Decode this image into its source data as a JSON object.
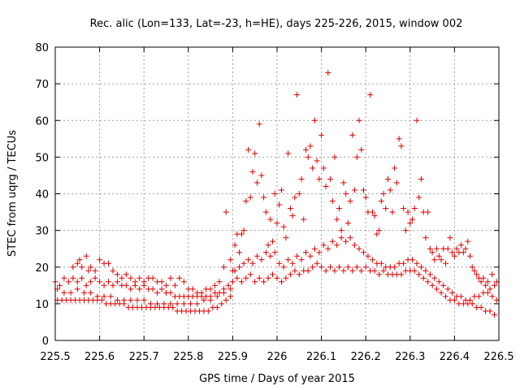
{
  "chart_data": {
    "type": "scatter",
    "title": "Rec. alic (Lon=133, Lat=-23, h=HE), days 225-226, 2015, window 002",
    "xlabel": "GPS time / Days of year 2015",
    "ylabel": "STEC from uqrg / TECUs",
    "xlim": [
      225.5,
      226.5
    ],
    "ylim": [
      0,
      80
    ],
    "x_ticks": [
      "225.5",
      "225.6",
      "225.7",
      "225.8",
      "225.9",
      "226",
      "226.1",
      "226.2",
      "226.3",
      "226.4",
      "226.5"
    ],
    "y_ticks": [
      "0",
      "10",
      "20",
      "30",
      "40",
      "50",
      "60",
      "70",
      "80"
    ],
    "grid": true,
    "marker": "+",
    "color": "#dd0000",
    "points": [
      [
        225.5,
        16
      ],
      [
        225.51,
        15
      ],
      [
        225.52,
        17
      ],
      [
        225.53,
        16
      ],
      [
        225.54,
        17
      ],
      [
        225.55,
        16
      ],
      [
        225.56,
        17
      ],
      [
        225.57,
        15
      ],
      [
        225.58,
        16
      ],
      [
        225.59,
        17
      ],
      [
        225.6,
        16
      ],
      [
        225.61,
        15
      ],
      [
        225.62,
        16
      ],
      [
        225.63,
        15
      ],
      [
        225.64,
        16
      ],
      [
        225.65,
        15
      ],
      [
        225.66,
        15
      ],
      [
        225.67,
        14
      ],
      [
        225.68,
        15
      ],
      [
        225.69,
        14
      ],
      [
        225.7,
        15
      ],
      [
        225.71,
        14
      ],
      [
        225.72,
        14
      ],
      [
        225.73,
        13
      ],
      [
        225.74,
        14
      ],
      [
        225.75,
        13
      ],
      [
        225.76,
        13
      ],
      [
        225.77,
        12
      ],
      [
        225.78,
        12
      ],
      [
        225.79,
        12
      ],
      [
        225.8,
        12
      ],
      [
        225.81,
        12
      ],
      [
        225.82,
        12
      ],
      [
        225.83,
        12
      ],
      [
        225.84,
        12
      ],
      [
        225.85,
        12
      ],
      [
        225.86,
        13
      ],
      [
        225.87,
        13
      ],
      [
        225.88,
        14
      ],
      [
        225.89,
        15
      ],
      [
        225.505,
        11
      ],
      [
        225.515,
        11
      ],
      [
        225.525,
        11
      ],
      [
        225.535,
        11
      ],
      [
        225.545,
        11
      ],
      [
        225.555,
        11
      ],
      [
        225.565,
        11
      ],
      [
        225.575,
        11
      ],
      [
        225.585,
        11
      ],
      [
        225.595,
        11
      ],
      [
        225.605,
        11
      ],
      [
        225.615,
        10
      ],
      [
        225.625,
        10
      ],
      [
        225.635,
        10
      ],
      [
        225.645,
        10
      ],
      [
        225.655,
        10
      ],
      [
        225.665,
        9
      ],
      [
        225.675,
        9
      ],
      [
        225.685,
        9
      ],
      [
        225.695,
        9
      ],
      [
        225.705,
        9
      ],
      [
        225.715,
        9
      ],
      [
        225.725,
        9
      ],
      [
        225.735,
        9
      ],
      [
        225.745,
        9
      ],
      [
        225.755,
        9
      ],
      [
        225.765,
        9
      ],
      [
        225.775,
        8
      ],
      [
        225.785,
        8
      ],
      [
        225.795,
        8
      ],
      [
        225.805,
        8
      ],
      [
        225.815,
        8
      ],
      [
        225.825,
        8
      ],
      [
        225.835,
        8
      ],
      [
        225.845,
        8
      ],
      [
        225.855,
        9
      ],
      [
        225.865,
        9
      ],
      [
        225.875,
        10
      ],
      [
        225.885,
        11
      ],
      [
        225.895,
        12
      ],
      [
        225.505,
        14
      ],
      [
        225.52,
        13
      ],
      [
        225.535,
        13
      ],
      [
        225.55,
        14
      ],
      [
        225.565,
        13
      ],
      [
        225.58,
        13
      ],
      [
        225.595,
        12
      ],
      [
        225.61,
        12
      ],
      [
        225.625,
        12
      ],
      [
        225.64,
        11
      ],
      [
        225.655,
        11
      ],
      [
        225.67,
        11
      ],
      [
        225.685,
        11
      ],
      [
        225.7,
        11
      ],
      [
        225.715,
        10
      ],
      [
        225.73,
        10
      ],
      [
        225.745,
        10
      ],
      [
        225.76,
        10
      ],
      [
        225.775,
        10
      ],
      [
        225.79,
        10
      ],
      [
        225.805,
        10
      ],
      [
        225.82,
        10
      ],
      [
        225.835,
        11
      ],
      [
        225.85,
        11
      ],
      [
        225.865,
        12
      ],
      [
        225.88,
        13
      ],
      [
        225.895,
        14
      ],
      [
        225.54,
        20
      ],
      [
        225.55,
        21
      ],
      [
        225.555,
        22
      ],
      [
        225.56,
        20
      ],
      [
        225.57,
        23
      ],
      [
        225.575,
        19
      ],
      [
        225.58,
        20
      ],
      [
        225.59,
        19
      ],
      [
        225.6,
        22
      ],
      [
        225.61,
        21
      ],
      [
        225.62,
        21
      ],
      [
        225.63,
        19
      ],
      [
        225.64,
        18
      ],
      [
        225.65,
        17
      ],
      [
        225.66,
        18
      ],
      [
        225.67,
        17
      ],
      [
        225.68,
        16
      ],
      [
        225.69,
        17
      ],
      [
        225.7,
        16
      ],
      [
        225.71,
        17
      ],
      [
        225.72,
        17
      ],
      [
        225.73,
        16
      ],
      [
        225.74,
        16
      ],
      [
        225.75,
        15
      ],
      [
        225.76,
        17
      ],
      [
        225.77,
        15
      ],
      [
        225.78,
        17
      ],
      [
        225.79,
        16
      ],
      [
        225.8,
        14
      ],
      [
        225.81,
        14
      ],
      [
        225.82,
        13
      ],
      [
        225.83,
        13
      ],
      [
        225.84,
        14
      ],
      [
        225.85,
        14
      ],
      [
        225.86,
        15
      ],
      [
        225.87,
        16
      ],
      [
        225.88,
        20
      ],
      [
        225.885,
        35
      ],
      [
        225.895,
        22
      ],
      [
        225.9,
        19
      ],
      [
        225.905,
        26
      ],
      [
        225.91,
        29
      ],
      [
        225.915,
        24
      ],
      [
        225.92,
        29
      ],
      [
        225.925,
        30
      ],
      [
        225.93,
        38
      ],
      [
        225.935,
        52
      ],
      [
        225.94,
        39
      ],
      [
        225.945,
        46
      ],
      [
        225.95,
        51
      ],
      [
        225.955,
        43
      ],
      [
        225.96,
        59
      ],
      [
        225.965,
        45
      ],
      [
        225.97,
        39
      ],
      [
        225.975,
        35
      ],
      [
        225.98,
        26
      ],
      [
        225.985,
        33
      ],
      [
        225.99,
        27
      ],
      [
        225.995,
        40
      ],
      [
        226.0,
        32
      ],
      [
        226.005,
        37
      ],
      [
        226.01,
        41
      ],
      [
        226.015,
        31
      ],
      [
        226.02,
        28
      ],
      [
        226.025,
        51
      ],
      [
        226.03,
        36
      ],
      [
        226.035,
        34
      ],
      [
        226.04,
        39
      ],
      [
        226.045,
        67
      ],
      [
        226.05,
        40
      ],
      [
        226.055,
        44
      ],
      [
        226.06,
        33
      ],
      [
        226.065,
        52
      ],
      [
        226.07,
        50
      ],
      [
        226.075,
        53
      ],
      [
        226.08,
        47
      ],
      [
        226.085,
        60
      ],
      [
        226.09,
        49
      ],
      [
        226.095,
        44
      ],
      [
        226.1,
        56
      ],
      [
        226.105,
        47
      ],
      [
        226.11,
        42
      ],
      [
        226.115,
        73
      ],
      [
        226.12,
        44
      ],
      [
        226.125,
        38
      ],
      [
        226.13,
        50
      ],
      [
        226.135,
        33
      ],
      [
        226.14,
        36
      ],
      [
        226.145,
        30
      ],
      [
        226.15,
        43
      ],
      [
        226.155,
        40
      ],
      [
        226.16,
        32
      ],
      [
        226.165,
        38
      ],
      [
        226.17,
        56
      ],
      [
        226.175,
        41
      ],
      [
        226.18,
        50
      ],
      [
        226.185,
        60
      ],
      [
        226.19,
        52
      ],
      [
        226.195,
        41
      ],
      [
        226.2,
        39
      ],
      [
        226.205,
        35
      ],
      [
        226.21,
        67
      ],
      [
        226.215,
        35
      ],
      [
        226.22,
        34
      ],
      [
        226.225,
        29
      ],
      [
        226.23,
        30
      ],
      [
        226.235,
        38
      ],
      [
        226.24,
        40
      ],
      [
        226.245,
        36
      ],
      [
        226.25,
        44
      ],
      [
        226.255,
        41
      ],
      [
        226.26,
        35
      ],
      [
        226.265,
        47
      ],
      [
        226.27,
        43
      ],
      [
        226.275,
        55
      ],
      [
        226.28,
        53
      ],
      [
        226.285,
        36
      ],
      [
        226.29,
        30
      ],
      [
        226.295,
        35
      ],
      [
        226.3,
        32
      ],
      [
        226.305,
        33
      ],
      [
        226.31,
        36
      ],
      [
        226.315,
        60
      ],
      [
        226.32,
        39
      ],
      [
        226.325,
        44
      ],
      [
        226.33,
        35
      ],
      [
        226.335,
        28
      ],
      [
        226.34,
        35
      ],
      [
        226.345,
        25
      ],
      [
        226.35,
        24
      ],
      [
        226.355,
        22
      ],
      [
        226.36,
        25
      ],
      [
        226.365,
        23
      ],
      [
        226.37,
        22
      ],
      [
        226.375,
        25
      ],
      [
        226.38,
        21
      ],
      [
        226.385,
        25
      ],
      [
        226.39,
        28
      ],
      [
        226.395,
        24
      ],
      [
        226.4,
        23
      ],
      [
        226.405,
        25
      ],
      [
        226.41,
        24
      ],
      [
        226.415,
        26
      ],
      [
        226.42,
        24
      ],
      [
        226.425,
        25
      ],
      [
        226.43,
        27
      ],
      [
        226.435,
        23
      ],
      [
        226.44,
        20
      ],
      [
        226.445,
        19
      ],
      [
        226.45,
        18
      ],
      [
        226.455,
        17
      ],
      [
        226.46,
        16
      ],
      [
        226.465,
        17
      ],
      [
        226.47,
        15
      ],
      [
        226.475,
        16
      ],
      [
        226.48,
        14
      ],
      [
        226.485,
        18
      ],
      [
        226.49,
        15
      ],
      [
        226.495,
        16
      ],
      [
        225.9,
        16
      ],
      [
        225.91,
        17
      ],
      [
        225.92,
        16
      ],
      [
        225.93,
        17
      ],
      [
        225.94,
        18
      ],
      [
        225.95,
        16
      ],
      [
        225.96,
        17
      ],
      [
        225.97,
        16
      ],
      [
        225.98,
        17
      ],
      [
        225.99,
        18
      ],
      [
        226.0,
        17
      ],
      [
        226.01,
        16
      ],
      [
        226.02,
        17
      ],
      [
        226.03,
        18
      ],
      [
        226.04,
        19
      ],
      [
        226.05,
        18
      ],
      [
        226.06,
        19
      ],
      [
        226.07,
        19
      ],
      [
        226.08,
        20
      ],
      [
        226.09,
        21
      ],
      [
        226.1,
        20
      ],
      [
        226.11,
        19
      ],
      [
        226.12,
        20
      ],
      [
        226.13,
        19
      ],
      [
        226.14,
        20
      ],
      [
        226.15,
        19
      ],
      [
        226.16,
        20
      ],
      [
        226.17,
        19
      ],
      [
        226.18,
        20
      ],
      [
        226.19,
        19
      ],
      [
        226.2,
        20
      ],
      [
        226.21,
        19
      ],
      [
        226.22,
        19
      ],
      [
        226.23,
        18
      ],
      [
        226.24,
        19
      ],
      [
        226.25,
        18
      ],
      [
        226.26,
        18
      ],
      [
        226.27,
        18
      ],
      [
        226.28,
        18
      ],
      [
        226.29,
        19
      ],
      [
        226.3,
        19
      ],
      [
        226.31,
        19
      ],
      [
        226.32,
        18
      ],
      [
        226.33,
        17
      ],
      [
        226.34,
        16
      ],
      [
        226.35,
        15
      ],
      [
        226.36,
        14
      ],
      [
        226.37,
        13
      ],
      [
        226.38,
        12
      ],
      [
        226.39,
        11
      ],
      [
        226.4,
        11
      ],
      [
        226.41,
        10
      ],
      [
        226.42,
        10
      ],
      [
        226.43,
        10
      ],
      [
        226.44,
        10
      ],
      [
        226.45,
        9
      ],
      [
        226.46,
        9
      ],
      [
        226.47,
        8
      ],
      [
        226.48,
        8
      ],
      [
        226.49,
        7
      ],
      [
        225.905,
        19
      ],
      [
        225.915,
        20
      ],
      [
        225.925,
        21
      ],
      [
        225.935,
        22
      ],
      [
        225.945,
        21
      ],
      [
        225.955,
        23
      ],
      [
        225.965,
        22
      ],
      [
        225.975,
        24
      ],
      [
        225.985,
        23
      ],
      [
        225.995,
        24
      ],
      [
        226.005,
        21
      ],
      [
        226.015,
        20
      ],
      [
        226.025,
        22
      ],
      [
        226.035,
        21
      ],
      [
        226.045,
        23
      ],
      [
        226.055,
        22
      ],
      [
        226.065,
        24
      ],
      [
        226.075,
        23
      ],
      [
        226.085,
        25
      ],
      [
        226.095,
        24
      ],
      [
        226.105,
        26
      ],
      [
        226.115,
        25
      ],
      [
        226.125,
        27
      ],
      [
        226.135,
        26
      ],
      [
        226.145,
        28
      ],
      [
        226.155,
        27
      ],
      [
        226.165,
        28
      ],
      [
        226.175,
        26
      ],
      [
        226.185,
        25
      ],
      [
        226.195,
        24
      ],
      [
        226.205,
        23
      ],
      [
        226.215,
        22
      ],
      [
        226.225,
        21
      ],
      [
        226.235,
        21
      ],
      [
        226.245,
        20
      ],
      [
        226.255,
        20
      ],
      [
        226.265,
        20
      ],
      [
        226.275,
        21
      ],
      [
        226.285,
        21
      ],
      [
        226.295,
        22
      ],
      [
        226.305,
        22
      ],
      [
        226.315,
        21
      ],
      [
        226.325,
        20
      ],
      [
        226.335,
        19
      ],
      [
        226.345,
        18
      ],
      [
        226.355,
        17
      ],
      [
        226.365,
        16
      ],
      [
        226.375,
        15
      ],
      [
        226.385,
        14
      ],
      [
        226.395,
        13
      ],
      [
        226.405,
        12
      ],
      [
        226.415,
        12
      ],
      [
        226.425,
        11
      ],
      [
        226.435,
        11
      ],
      [
        226.445,
        12
      ],
      [
        226.455,
        12
      ],
      [
        226.465,
        13
      ],
      [
        226.475,
        13
      ],
      [
        226.485,
        12
      ],
      [
        226.495,
        11
      ]
    ]
  }
}
